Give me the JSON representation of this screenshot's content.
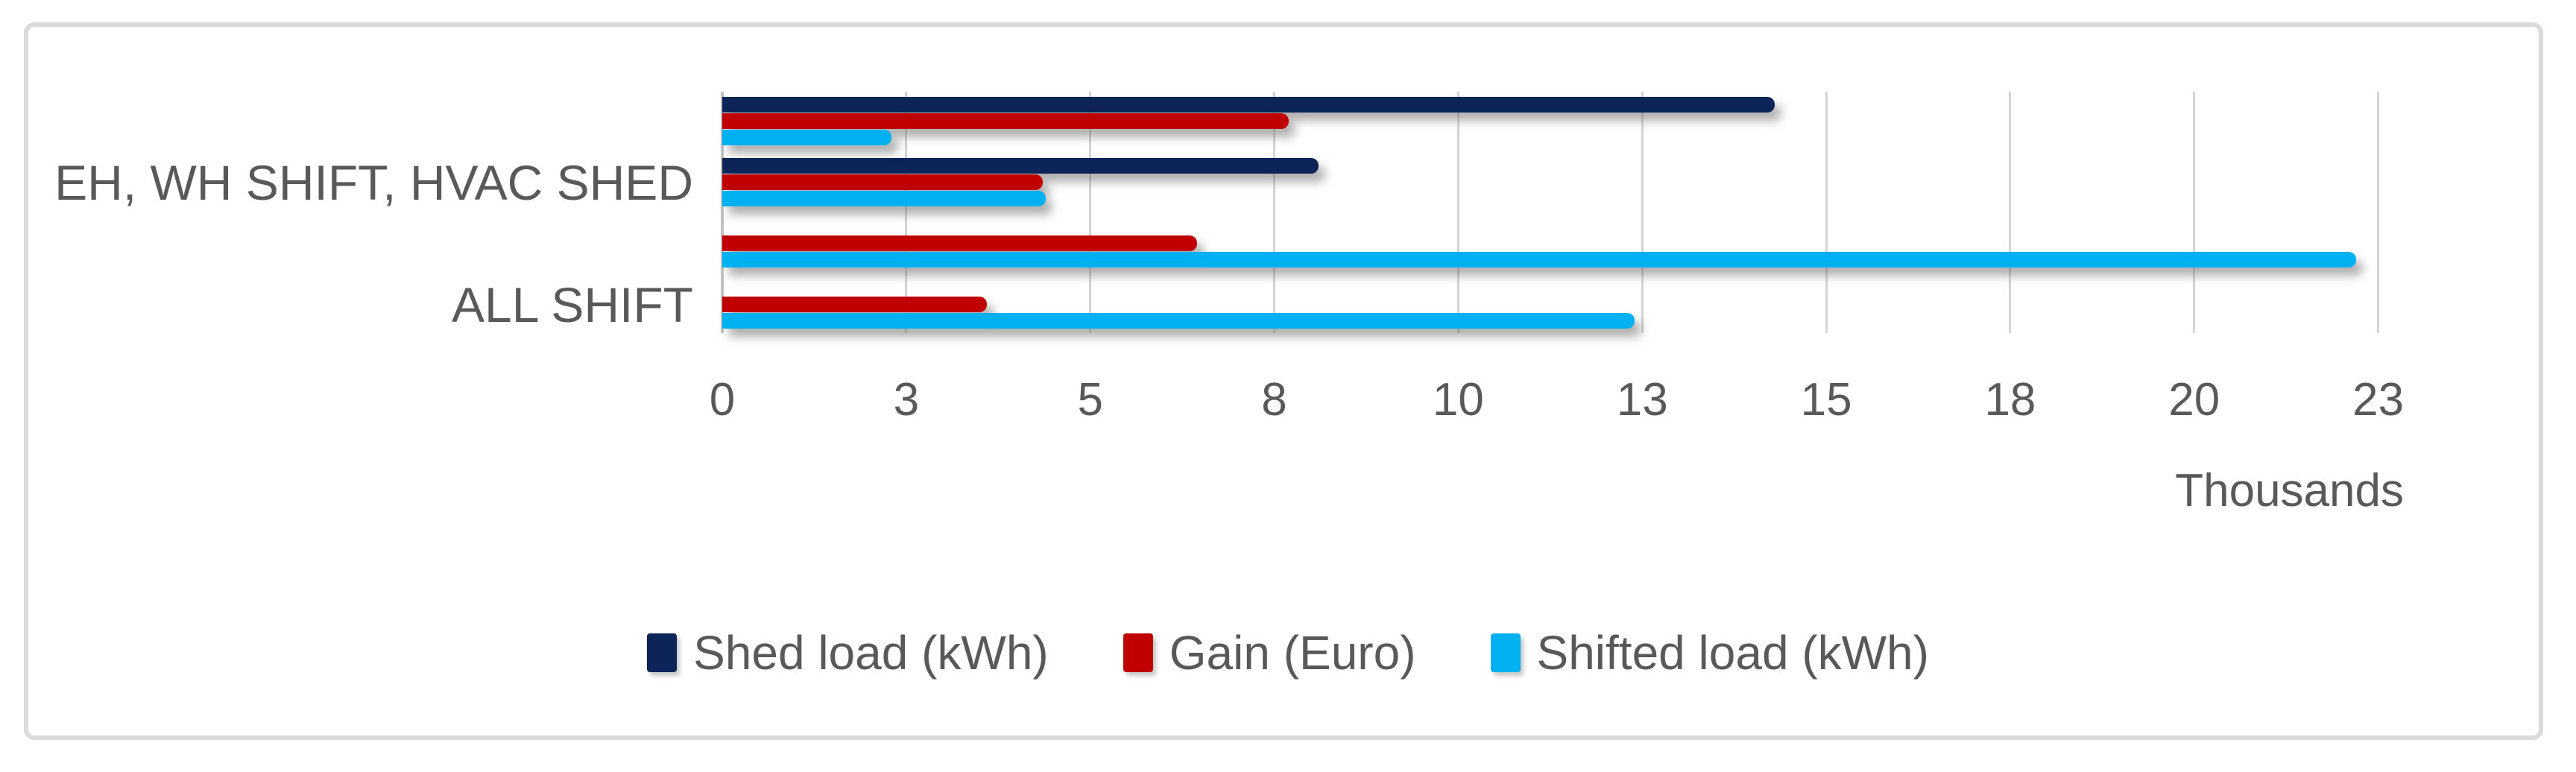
{
  "chart_data": {
    "type": "bar",
    "orientation": "horizontal",
    "title": "",
    "value_axis": {
      "xlabel": "Thousands",
      "lim_thousands": [
        0,
        23
      ],
      "ticks": [
        {
          "label": "0",
          "value": 0
        },
        {
          "label": "3",
          "value": 2.5
        },
        {
          "label": "5",
          "value": 5
        },
        {
          "label": "8",
          "value": 7.5
        },
        {
          "label": "10",
          "value": 10
        },
        {
          "label": "13",
          "value": 12.5
        },
        {
          "label": "15",
          "value": 15
        },
        {
          "label": "18",
          "value": 17.5
        },
        {
          "label": "20",
          "value": 20
        },
        {
          "label": "23",
          "value": 22.5
        }
      ]
    },
    "category_axis": {
      "n_clusters": 4,
      "visible_labels": [
        {
          "text": "EH, WH SHIFT, HVAC SHED",
          "cluster_index": 1
        },
        {
          "text": "ALL SHIFT",
          "cluster_index": 3
        }
      ]
    },
    "series": [
      {
        "name": "Shed load (kWh)",
        "color": "#0D2459",
        "values_thousands": [
          14.3,
          8.1,
          0,
          0
        ]
      },
      {
        "name": "Gain (Euro)",
        "color": "#C00000",
        "values_thousands": [
          7.7,
          4.35,
          6.45,
          3.6
        ]
      },
      {
        "name": "Shifted load (kWh)",
        "color": "#00B0F0",
        "values_thousands": [
          2.3,
          4.4,
          22.2,
          12.4
        ]
      }
    ],
    "legend_position": "bottom",
    "grid": "vertical major gridlines every 2.5 thousand"
  },
  "styles": {
    "text_color": "#595959",
    "gridline_color": "#D4D4D4",
    "axis_line_color": "#C2C2C2",
    "frame_border_color": "#DBDBDB",
    "background": "#FFFFFF"
  }
}
